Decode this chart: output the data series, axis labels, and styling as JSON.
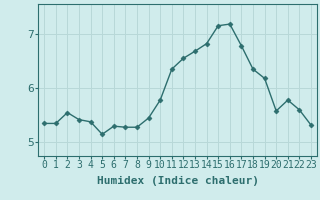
{
  "x": [
    0,
    1,
    2,
    3,
    4,
    5,
    6,
    7,
    8,
    9,
    10,
    11,
    12,
    13,
    14,
    15,
    16,
    17,
    18,
    19,
    20,
    21,
    22,
    23
  ],
  "y": [
    5.35,
    5.35,
    5.55,
    5.42,
    5.38,
    5.15,
    5.3,
    5.28,
    5.28,
    5.45,
    5.78,
    6.35,
    6.55,
    6.68,
    6.82,
    7.15,
    7.18,
    6.78,
    6.35,
    6.18,
    5.58,
    5.78,
    5.6,
    5.32
  ],
  "line_color": "#2d6e6e",
  "marker": "D",
  "marker_size": 2.5,
  "bg_color": "#d0ecec",
  "grid_color": "#b8d8d8",
  "xlabel": "Humidex (Indice chaleur)",
  "ylim": [
    4.75,
    7.55
  ],
  "xlim": [
    -0.5,
    23.5
  ],
  "yticks": [
    5,
    6,
    7
  ],
  "xticks": [
    0,
    1,
    2,
    3,
    4,
    5,
    6,
    7,
    8,
    9,
    10,
    11,
    12,
    13,
    14,
    15,
    16,
    17,
    18,
    19,
    20,
    21,
    22,
    23
  ],
  "label_fontsize": 8,
  "tick_fontsize": 7
}
